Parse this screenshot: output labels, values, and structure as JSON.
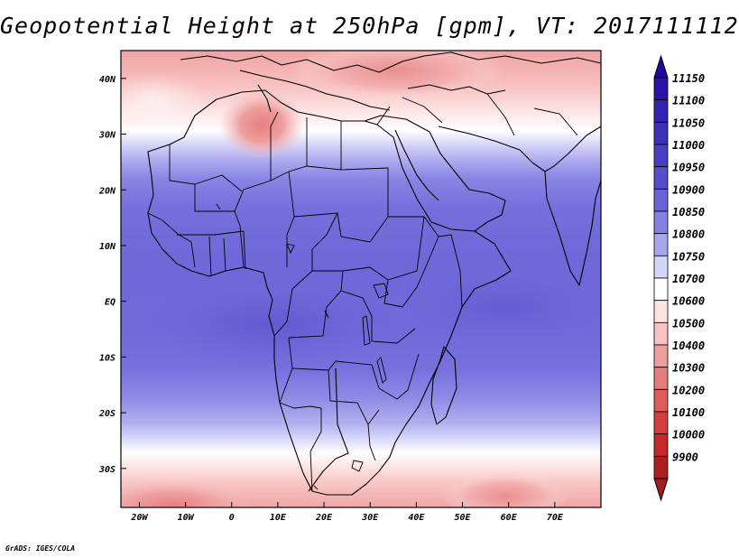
{
  "title": "Geopotential Height at 250hPa [gpm], VT: 2017111112",
  "credit": "GrADS: IGES/COLA",
  "map": {
    "lon_range": [
      -24,
      80
    ],
    "lat_range": [
      -37,
      45
    ],
    "lon_ticks": [
      {
        "value": -20,
        "label": "20W"
      },
      {
        "value": -10,
        "label": "10W"
      },
      {
        "value": 0,
        "label": "0"
      },
      {
        "value": 10,
        "label": "10E"
      },
      {
        "value": 20,
        "label": "20E"
      },
      {
        "value": 30,
        "label": "30E"
      },
      {
        "value": 40,
        "label": "40E"
      },
      {
        "value": 50,
        "label": "50E"
      },
      {
        "value": 60,
        "label": "60E"
      },
      {
        "value": 70,
        "label": "70E"
      }
    ],
    "lat_ticks": [
      {
        "value": 40,
        "label": "40N"
      },
      {
        "value": 30,
        "label": "30N"
      },
      {
        "value": 20,
        "label": "20N"
      },
      {
        "value": 10,
        "label": "10N"
      },
      {
        "value": 0,
        "label": "EQ"
      },
      {
        "value": -10,
        "label": "10S"
      },
      {
        "value": -20,
        "label": "20S"
      },
      {
        "value": -30,
        "label": "30S"
      }
    ]
  },
  "colorbar": {
    "top_arrow_color": "#1e0aa0",
    "bottom_arrow_color": "#a01e1e",
    "levels": [
      {
        "label": "11150",
        "color": "#2a14a8"
      },
      {
        "label": "11100",
        "color": "#3522b0"
      },
      {
        "label": "11050",
        "color": "#3f30b8"
      },
      {
        "label": "11000",
        "color": "#4a3fc2"
      },
      {
        "label": "10950",
        "color": "#574ecb"
      },
      {
        "label": "10900",
        "color": "#6a63d6"
      },
      {
        "label": "10850",
        "color": "#8680e2"
      },
      {
        "label": "10800",
        "color": "#a9a6ee"
      },
      {
        "label": "10750",
        "color": "#d4d3f8"
      },
      {
        "label": "10700",
        "color": "#ffffff"
      },
      {
        "label": "10600",
        "color": "#fde2e2"
      },
      {
        "label": "10500",
        "color": "#f8c2c2"
      },
      {
        "label": "10400",
        "color": "#ef9e9e"
      },
      {
        "label": "10300",
        "color": "#e57d7d"
      },
      {
        "label": "10200",
        "color": "#dd5c5c"
      },
      {
        "label": "10100",
        "color": "#d43e3e"
      },
      {
        "label": "10000",
        "color": "#c42a2a"
      },
      {
        "label": "9900",
        "color": "#ad1e1e"
      }
    ]
  }
}
